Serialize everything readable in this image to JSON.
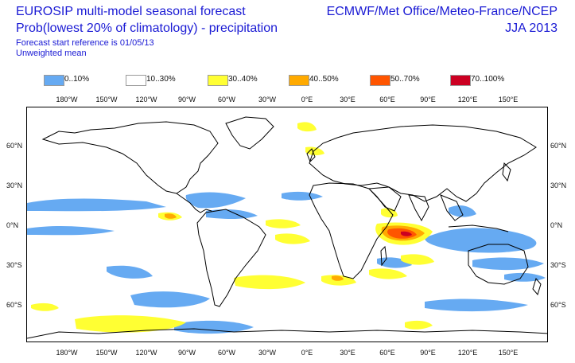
{
  "header": {
    "title_line1": "EUROSIP multi-model seasonal forecast",
    "title_line2": "Prob(lowest 20% of climatology) - precipitation",
    "subtitle_line1": "Forecast start reference is 01/05/13",
    "subtitle_line2": "Unweighted mean",
    "centres": "ECMWF/Met Office/Meteo-France/NCEP",
    "season": "JJA 2013"
  },
  "legend": [
    {
      "label": "0..10%",
      "color": "#66aaf2"
    },
    {
      "label": "10..30%",
      "color": "#ffffff"
    },
    {
      "label": "30..40%",
      "color": "#ffff33"
    },
    {
      "label": "40..50%",
      "color": "#ffaa00"
    },
    {
      "label": "50..70%",
      "color": "#ff5500"
    },
    {
      "label": "70..100%",
      "color": "#cc0022"
    }
  ],
  "axes": {
    "lon_labels": [
      "180°W",
      "150°W",
      "120°W",
      "90°W",
      "60°W",
      "30°W",
      "0°E",
      "30°E",
      "60°E",
      "90°E",
      "120°E",
      "150°E"
    ],
    "lat_labels_left": [
      "60°N",
      "30°N",
      "0°N",
      "30°S",
      "60°S"
    ],
    "lat_labels_right": [
      "60°N",
      "30°N",
      "0°N",
      "30°S",
      "60°S"
    ]
  }
}
